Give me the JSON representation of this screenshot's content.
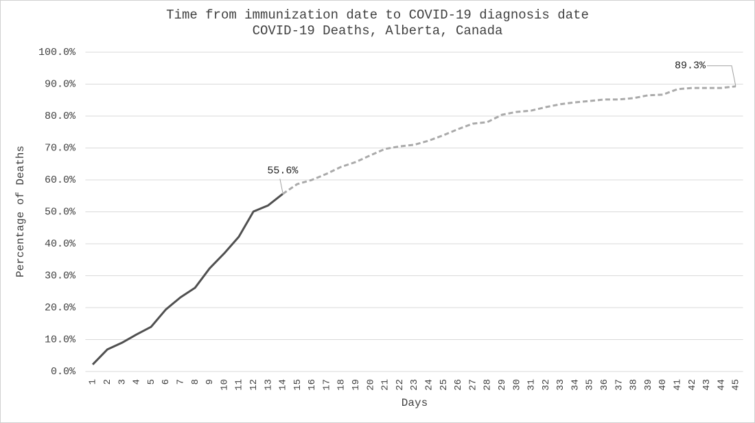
{
  "chart_data": {
    "type": "line",
    "title": "Time from immunization date to COVID-19 diagnosis date",
    "subtitle": "COVID-19 Deaths, Alberta, Canada",
    "x_label": "Days",
    "y_label": "Percentage of Deaths",
    "categories": [
      "1",
      "2",
      "3",
      "4",
      "5",
      "6",
      "7",
      "8",
      "9",
      "10",
      "11",
      "12",
      "13",
      "14",
      "15",
      "16",
      "17",
      "18",
      "19",
      "20",
      "21",
      "22",
      "23",
      "24",
      "25",
      "26",
      "27",
      "28",
      "29",
      "30",
      "31",
      "32",
      "33",
      "34",
      "35",
      "36",
      "37",
      "38",
      "39",
      "40",
      "41",
      "42",
      "43",
      "44",
      "45"
    ],
    "series": [
      {
        "color": "#505050",
        "line_style": "solid",
        "values": [
          2.2,
          6.9,
          9.0,
          11.6,
          14.0,
          19.4,
          23.2,
          26.2,
          32.3,
          37.0,
          42.2,
          50.1,
          52.0,
          55.6,
          null,
          null,
          null,
          null,
          null,
          null,
          null,
          null,
          null,
          null,
          null,
          null,
          null,
          null,
          null,
          null,
          null,
          null,
          null,
          null,
          null,
          null,
          null,
          null,
          null,
          null,
          null,
          null,
          null,
          null,
          null
        ],
        "value_labels": [
          null,
          null,
          null,
          null,
          null,
          null,
          null,
          null,
          null,
          null,
          null,
          null,
          null,
          "55.6%",
          null,
          null,
          null,
          null,
          null,
          null,
          null,
          null,
          null,
          null,
          null,
          null,
          null,
          null,
          null,
          null,
          null,
          null,
          null,
          null,
          null,
          null,
          null,
          null,
          null,
          null,
          null,
          null,
          null,
          null,
          null
        ]
      },
      {
        "color": "#aaaaaa",
        "line_style": "dashed",
        "values": [
          null,
          null,
          null,
          null,
          null,
          null,
          null,
          null,
          null,
          null,
          null,
          null,
          null,
          55.6,
          58.7,
          60.0,
          61.9,
          64.1,
          65.6,
          67.7,
          69.7,
          70.5,
          71.0,
          72.3,
          74.0,
          75.9,
          77.6,
          78.1,
          80.4,
          81.3,
          81.7,
          82.8,
          83.7,
          84.3,
          84.7,
          85.2,
          85.2,
          85.6,
          86.5,
          86.7,
          88.4,
          88.8,
          88.8,
          88.8,
          89.3
        ],
        "value_labels": [
          null,
          null,
          null,
          null,
          null,
          null,
          null,
          null,
          null,
          null,
          null,
          null,
          null,
          null,
          null,
          null,
          null,
          null,
          null,
          null,
          null,
          null,
          null,
          null,
          null,
          null,
          null,
          null,
          null,
          null,
          null,
          null,
          null,
          null,
          null,
          null,
          null,
          null,
          null,
          null,
          null,
          null,
          null,
          null,
          "89.3%"
        ]
      }
    ],
    "ylim": [
      0,
      100
    ],
    "yticks": [
      {
        "value": 0,
        "label": "0.0%"
      },
      {
        "value": 10,
        "label": "10.0%"
      },
      {
        "value": 20,
        "label": "20.0%"
      },
      {
        "value": 30,
        "label": "30.0%"
      },
      {
        "value": 40,
        "label": "40.0%"
      },
      {
        "value": 50,
        "label": "50.0%"
      },
      {
        "value": 60,
        "label": "60.0%"
      },
      {
        "value": 70,
        "label": "70.0%"
      },
      {
        "value": 80,
        "label": "80.0%"
      },
      {
        "value": 90,
        "label": "90.0%"
      },
      {
        "value": 100,
        "label": "100.0%"
      }
    ],
    "grid": true
  }
}
